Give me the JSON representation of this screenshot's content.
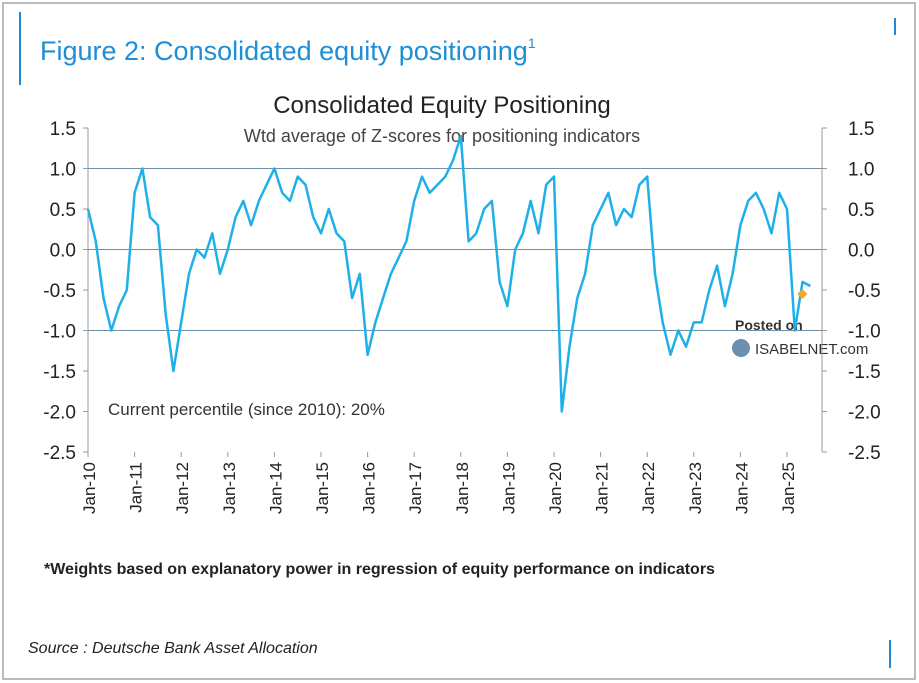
{
  "figure_title": "Figure 2: Consolidated equity positioning",
  "figure_title_note": "1",
  "chart_data": {
    "type": "line",
    "title": "Consolidated Equity Positioning",
    "subtitle": "Wtd average of Z-scores for positioning indicators",
    "annotation": "Current percentile (since 2010): 20%",
    "categories": [
      "Jan-10",
      null,
      null,
      null,
      null,
      null,
      "Jan-11",
      null,
      null,
      null,
      null,
      null,
      "Jan-12",
      null,
      null,
      null,
      null,
      null,
      "Jan-13",
      null,
      null,
      null,
      null,
      null,
      "Jan-14",
      null,
      null,
      null,
      null,
      null,
      "Jan-15",
      null,
      null,
      null,
      null,
      null,
      "Jan-16",
      null,
      null,
      null,
      null,
      null,
      "Jan-17",
      null,
      null,
      null,
      null,
      null,
      "Jan-18",
      null,
      null,
      null,
      null,
      null,
      "Jan-19",
      null,
      null,
      null,
      null,
      null,
      "Jan-20",
      null,
      null,
      null,
      null,
      null,
      "Jan-21",
      null,
      null,
      null,
      null,
      null,
      "Jan-22",
      null,
      null,
      null,
      null,
      null,
      "Jan-23",
      null,
      null,
      null,
      null,
      null,
      "Jan-24",
      null,
      null,
      null,
      null,
      null,
      "Jan-25",
      null,
      null,
      null
    ],
    "series": [
      {
        "color": "#1fb0ea",
        "values": [
          0.5,
          0.1,
          -0.6,
          -1.0,
          -0.7,
          -0.5,
          0.7,
          1.0,
          0.4,
          0.3,
          -0.8,
          -1.5,
          -0.9,
          -0.3,
          0.0,
          -0.1,
          0.2,
          -0.3,
          0.0,
          0.4,
          0.6,
          0.3,
          0.6,
          0.8,
          1.0,
          0.7,
          0.6,
          0.9,
          0.8,
          0.4,
          0.2,
          0.5,
          0.2,
          0.1,
          -0.6,
          -0.3,
          -1.3,
          -0.9,
          -0.6,
          -0.3,
          -0.1,
          0.1,
          0.6,
          0.9,
          0.7,
          0.8,
          0.9,
          1.1,
          1.4,
          0.1,
          0.2,
          0.5,
          0.6,
          -0.4,
          -0.7,
          0.0,
          0.2,
          0.6,
          0.2,
          0.8,
          0.9,
          -2.0,
          -1.2,
          -0.6,
          -0.3,
          0.3,
          0.5,
          0.7,
          0.3,
          0.5,
          0.4,
          0.8,
          0.9,
          -0.3,
          -0.9,
          -1.3,
          -1.0,
          -1.2,
          -0.9,
          -0.9,
          -0.5,
          -0.2,
          -0.7,
          -0.3,
          0.3,
          0.6,
          0.7,
          0.5,
          0.2,
          0.7,
          0.5,
          -1.0,
          -0.4,
          -0.45
        ]
      }
    ],
    "latest_point": {
      "value": -0.55,
      "color": "#f5a623"
    },
    "ylim": [
      -2.5,
      1.5
    ],
    "yticks": [
      {
        "value": 1.5,
        "label": "1.5"
      },
      {
        "value": 1,
        "label": "1.0"
      },
      {
        "value": 0.5,
        "label": "0.5"
      },
      {
        "value": 0,
        "label": "0.0"
      },
      {
        "value": -0.5,
        "label": "-0.5"
      },
      {
        "value": -1,
        "label": "-1.0"
      },
      {
        "value": -1.5,
        "label": "-1.5"
      },
      {
        "value": -2,
        "label": "-2.0"
      },
      {
        "value": -2.5,
        "label": "-2.5"
      }
    ],
    "reference_lines": [
      1,
      0,
      -1
    ]
  },
  "footnote": "*Weights based on explanatory power in regression of equity performance on indicators",
  "source": "Source : Deutsche Bank Asset Allocation",
  "watermark": {
    "line1": "Posted on",
    "line2": "ISABELNET.com"
  }
}
